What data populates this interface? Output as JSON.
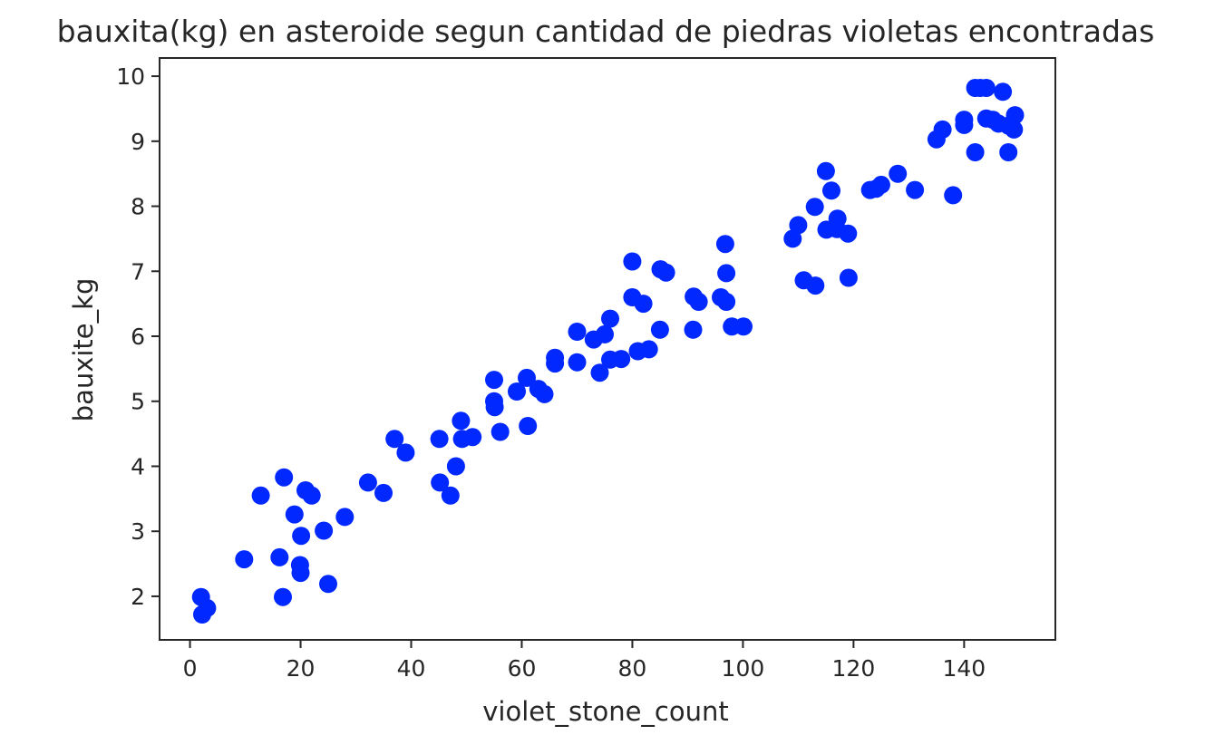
{
  "chart_data": {
    "type": "scatter",
    "title": "bauxita(kg) en asteroide segun cantidad de piedras violetas encontradas",
    "xlabel": "violet_stone_count",
    "ylabel": "bauxite_kg",
    "xlim": [
      -5.5,
      156.5
    ],
    "ylim": [
      1.33,
      10.28
    ],
    "xticks": [
      0,
      20,
      40,
      60,
      80,
      100,
      120,
      140
    ],
    "yticks": [
      2,
      3,
      4,
      5,
      6,
      7,
      8,
      9,
      10
    ],
    "grid": false,
    "marker_color": "#0028ff",
    "points": [
      [
        2,
        1.99
      ],
      [
        2.2,
        1.72
      ],
      [
        3.1,
        1.82
      ],
      [
        9.8,
        2.57
      ],
      [
        12.8,
        3.55
      ],
      [
        16.2,
        2.6
      ],
      [
        16.8,
        1.99
      ],
      [
        17,
        3.83
      ],
      [
        18.9,
        3.26
      ],
      [
        19.9,
        2.48
      ],
      [
        20,
        2.36
      ],
      [
        20.1,
        2.93
      ],
      [
        20.9,
        3.63
      ],
      [
        22,
        3.55
      ],
      [
        24.2,
        3.01
      ],
      [
        25,
        2.19
      ],
      [
        28,
        3.22
      ],
      [
        32.2,
        3.75
      ],
      [
        35,
        3.59
      ],
      [
        37,
        4.42
      ],
      [
        39,
        4.21
      ],
      [
        45.1,
        4.42
      ],
      [
        45.2,
        3.75
      ],
      [
        47.1,
        3.55
      ],
      [
        48.1,
        4.0
      ],
      [
        49,
        4.7
      ],
      [
        49.2,
        4.42
      ],
      [
        51.1,
        4.45
      ],
      [
        55,
        5.33
      ],
      [
        55,
        5.0
      ],
      [
        55.1,
        4.91
      ],
      [
        56.1,
        4.53
      ],
      [
        59.1,
        5.15
      ],
      [
        60.9,
        5.36
      ],
      [
        61.1,
        4.62
      ],
      [
        63,
        5.19
      ],
      [
        64.1,
        5.11
      ],
      [
        66,
        5.67
      ],
      [
        66,
        5.58
      ],
      [
        70,
        6.07
      ],
      [
        70,
        5.6
      ],
      [
        73,
        5.95
      ],
      [
        74.1,
        5.44
      ],
      [
        75,
        6.03
      ],
      [
        76,
        6.27
      ],
      [
        76,
        5.64
      ],
      [
        78,
        5.65
      ],
      [
        80,
        7.15
      ],
      [
        80,
        6.6
      ],
      [
        81,
        5.77
      ],
      [
        82,
        6.5
      ],
      [
        83,
        5.8
      ],
      [
        85,
        6.1
      ],
      [
        85.1,
        7.03
      ],
      [
        86.1,
        6.98
      ],
      [
        91,
        6.1
      ],
      [
        91.1,
        6.61
      ],
      [
        92,
        6.53
      ],
      [
        96,
        6.6
      ],
      [
        96.8,
        7.42
      ],
      [
        97,
        6.97
      ],
      [
        97,
        6.53
      ],
      [
        98,
        6.15
      ],
      [
        100.1,
        6.15
      ],
      [
        109,
        7.5
      ],
      [
        110,
        7.71
      ],
      [
        111,
        6.86
      ],
      [
        113,
        7.99
      ],
      [
        113.1,
        6.78
      ],
      [
        115,
        8.54
      ],
      [
        115.1,
        7.64
      ],
      [
        116,
        8.24
      ],
      [
        117,
        7.65
      ],
      [
        117.1,
        7.81
      ],
      [
        119,
        7.58
      ],
      [
        119.1,
        6.9
      ],
      [
        123,
        8.25
      ],
      [
        124.1,
        8.27
      ],
      [
        125,
        8.33
      ],
      [
        128,
        8.5
      ],
      [
        131.1,
        8.25
      ],
      [
        135,
        9.03
      ],
      [
        136.1,
        9.18
      ],
      [
        138,
        8.17
      ],
      [
        140,
        9.33
      ],
      [
        140,
        9.25
      ],
      [
        142,
        8.83
      ],
      [
        142,
        9.82
      ],
      [
        142.9,
        9.82
      ],
      [
        144,
        9.35
      ],
      [
        144,
        9.82
      ],
      [
        145.2,
        9.33
      ],
      [
        146.2,
        9.27
      ],
      [
        147,
        9.76
      ],
      [
        148,
        9.24
      ],
      [
        148,
        8.83
      ],
      [
        149,
        9.18
      ],
      [
        149.2,
        9.4
      ]
    ]
  }
}
